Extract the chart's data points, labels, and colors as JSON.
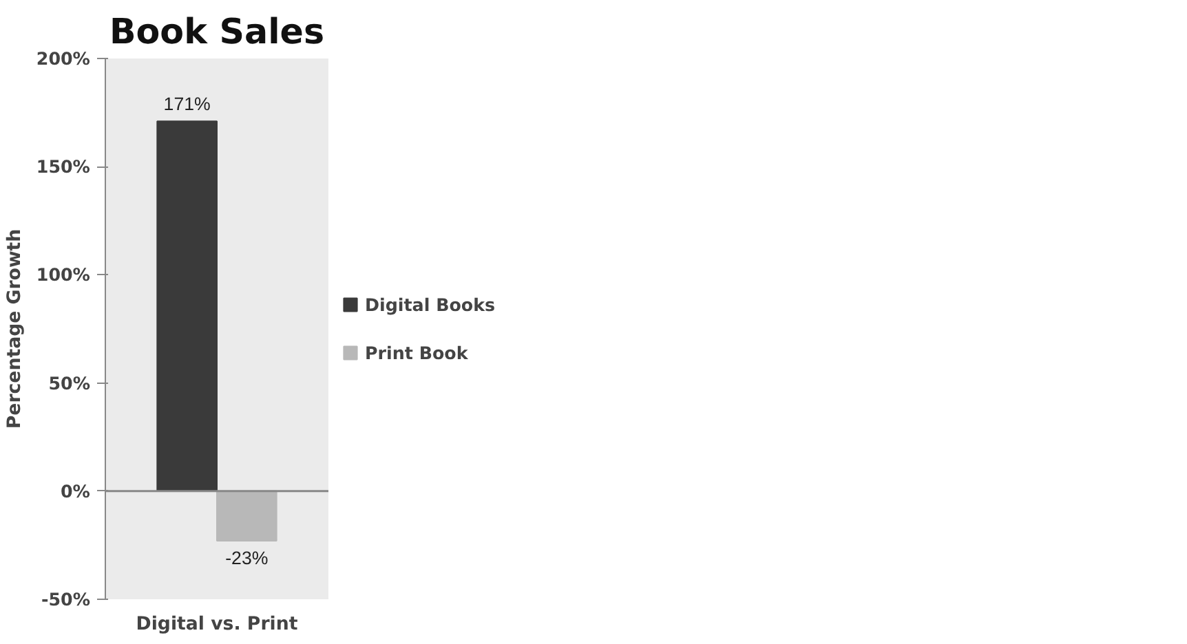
{
  "chart_data": {
    "type": "bar",
    "title": "Book Sales",
    "xlabel": "Digital vs. Print",
    "ylabel": "Percentage Growth",
    "categories": [
      null
    ],
    "series": [
      {
        "name": "Digital Books",
        "color": "#3a3a3a",
        "values": [
          171
        ],
        "value_labels": [
          "171%"
        ]
      },
      {
        "name": "Print Book",
        "color": "#b8b8b8",
        "values": [
          -23
        ],
        "value_labels": [
          "-23%"
        ]
      }
    ],
    "ylim": [
      -50,
      200
    ],
    "yticks": [
      {
        "value": -50,
        "label": "-50%"
      },
      {
        "value": 0,
        "label": "0%"
      },
      {
        "value": 50,
        "label": "50%"
      },
      {
        "value": 100,
        "label": "100%"
      },
      {
        "value": 150,
        "label": "150%"
      },
      {
        "value": 200,
        "label": "200%"
      }
    ],
    "legend": "right"
  }
}
